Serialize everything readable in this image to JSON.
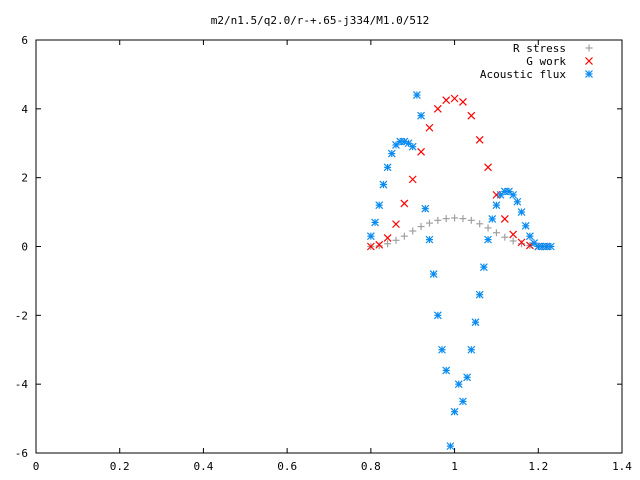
{
  "chart_data": {
    "type": "scatter",
    "title": "m2/n1.5/q2.0/r-+.65-j334/M1.0/512",
    "xlabel": "",
    "ylabel": "",
    "xlim": [
      0,
      1.4
    ],
    "ylim": [
      -6,
      6
    ],
    "x_ticks": [
      {
        "v": 0,
        "label": "0"
      },
      {
        "v": 0.2,
        "label": "0.2"
      },
      {
        "v": 0.4,
        "label": "0.4"
      },
      {
        "v": 0.6,
        "label": "0.6"
      },
      {
        "v": 0.8,
        "label": "0.8"
      },
      {
        "v": 1.0,
        "label": "1"
      },
      {
        "v": 1.2,
        "label": "1.2"
      },
      {
        "v": 1.4,
        "label": "1.4"
      }
    ],
    "y_ticks": [
      {
        "v": -6,
        "label": "-6"
      },
      {
        "v": -4,
        "label": "-4"
      },
      {
        "v": -2,
        "label": "-2"
      },
      {
        "v": 0,
        "label": "0"
      },
      {
        "v": 2,
        "label": "2"
      },
      {
        "v": 4,
        "label": "4"
      },
      {
        "v": 6,
        "label": "6"
      }
    ],
    "grid": false,
    "legend_position": "top-right",
    "series": [
      {
        "name": "R stress",
        "marker": "plus",
        "color": "#a0a0a0",
        "x": [
          0.8,
          0.82,
          0.84,
          0.86,
          0.88,
          0.9,
          0.92,
          0.94,
          0.96,
          0.98,
          1.0,
          1.02,
          1.04,
          1.06,
          1.08,
          1.1,
          1.12,
          1.14,
          1.16,
          1.18,
          1.2,
          1.22
        ],
        "y": [
          0.0,
          0.02,
          0.08,
          0.18,
          0.3,
          0.45,
          0.58,
          0.68,
          0.76,
          0.81,
          0.83,
          0.81,
          0.76,
          0.66,
          0.54,
          0.4,
          0.27,
          0.16,
          0.08,
          0.03,
          0.01,
          0.0
        ]
      },
      {
        "name": "G work",
        "marker": "cross",
        "color": "#ff0000",
        "x": [
          0.8,
          0.82,
          0.84,
          0.86,
          0.88,
          0.9,
          0.92,
          0.94,
          0.96,
          0.98,
          1.0,
          1.02,
          1.04,
          1.06,
          1.08,
          1.1,
          1.12,
          1.14,
          1.16,
          1.18,
          1.2,
          1.22
        ],
        "y": [
          0.0,
          0.05,
          0.25,
          0.65,
          1.25,
          1.95,
          2.75,
          3.45,
          4.0,
          4.25,
          4.3,
          4.2,
          3.8,
          3.1,
          2.3,
          1.5,
          0.8,
          0.35,
          0.12,
          0.03,
          0.0,
          0.0
        ]
      },
      {
        "name": "Acoustic flux",
        "marker": "star",
        "color": "#0a8bef",
        "x": [
          0.8,
          0.81,
          0.82,
          0.83,
          0.84,
          0.85,
          0.86,
          0.87,
          0.88,
          0.89,
          0.9,
          0.91,
          0.92,
          0.93,
          0.94,
          0.95,
          0.96,
          0.97,
          0.98,
          0.99,
          1.0,
          1.01,
          1.02,
          1.03,
          1.04,
          1.05,
          1.06,
          1.07,
          1.08,
          1.09,
          1.1,
          1.11,
          1.12,
          1.13,
          1.14,
          1.15,
          1.16,
          1.17,
          1.18,
          1.19,
          1.2,
          1.21,
          1.22,
          1.23
        ],
        "y": [
          0.3,
          0.7,
          1.2,
          1.8,
          2.3,
          2.7,
          2.95,
          3.05,
          3.05,
          3.0,
          2.9,
          4.4,
          3.8,
          1.1,
          0.2,
          -0.8,
          -2.0,
          -3.0,
          -3.6,
          -5.8,
          -4.8,
          -4.0,
          -4.5,
          -3.8,
          -3.0,
          -2.2,
          -1.4,
          -0.6,
          0.2,
          0.8,
          1.2,
          1.5,
          1.6,
          1.6,
          1.5,
          1.3,
          1.0,
          0.6,
          0.3,
          0.1,
          0.0,
          0.0,
          0.0,
          0.0
        ]
      }
    ]
  }
}
